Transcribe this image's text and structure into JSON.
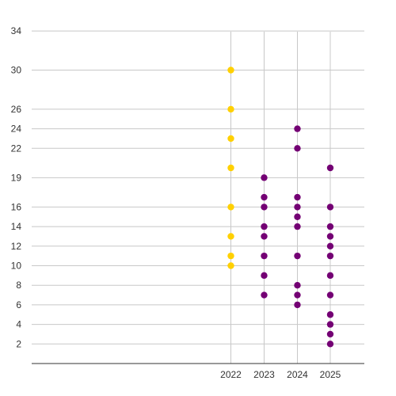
{
  "chart_data": {
    "type": "scatter",
    "title": "",
    "xlabel": "",
    "ylabel": "",
    "x_categories": [
      "2022",
      "2023",
      "2024",
      "2025"
    ],
    "y_ticks": [
      2,
      4,
      6,
      8,
      10,
      12,
      14,
      16,
      19,
      22,
      24,
      26,
      30,
      34
    ],
    "ylim": [
      0,
      34
    ],
    "grid": true,
    "legend": "none",
    "series": [
      {
        "color": "#FFD000",
        "points": [
          {
            "x": "2022",
            "y": 30
          },
          {
            "x": "2022",
            "y": 26
          },
          {
            "x": "2022",
            "y": 23
          },
          {
            "x": "2022",
            "y": 20
          },
          {
            "x": "2022",
            "y": 16
          },
          {
            "x": "2022",
            "y": 13
          },
          {
            "x": "2022",
            "y": 11
          },
          {
            "x": "2022",
            "y": 10
          }
        ]
      },
      {
        "color": "#740074",
        "points": [
          {
            "x": "2023",
            "y": 19
          },
          {
            "x": "2023",
            "y": 17
          },
          {
            "x": "2023",
            "y": 16
          },
          {
            "x": "2023",
            "y": 14
          },
          {
            "x": "2023",
            "y": 13
          },
          {
            "x": "2023",
            "y": 11
          },
          {
            "x": "2023",
            "y": 9
          },
          {
            "x": "2023",
            "y": 7
          },
          {
            "x": "2024",
            "y": 24
          },
          {
            "x": "2024",
            "y": 22
          },
          {
            "x": "2024",
            "y": 17
          },
          {
            "x": "2024",
            "y": 16
          },
          {
            "x": "2024",
            "y": 15
          },
          {
            "x": "2024",
            "y": 14
          },
          {
            "x": "2024",
            "y": 11
          },
          {
            "x": "2024",
            "y": 8
          },
          {
            "x": "2024",
            "y": 7
          },
          {
            "x": "2024",
            "y": 6
          },
          {
            "x": "2025",
            "y": 20
          },
          {
            "x": "2025",
            "y": 16
          },
          {
            "x": "2025",
            "y": 14
          },
          {
            "x": "2025",
            "y": 13
          },
          {
            "x": "2025",
            "y": 12
          },
          {
            "x": "2025",
            "y": 11
          },
          {
            "x": "2025",
            "y": 9
          },
          {
            "x": "2025",
            "y": 7
          },
          {
            "x": "2025",
            "y": 5
          },
          {
            "x": "2025",
            "y": 4
          },
          {
            "x": "2025",
            "y": 3
          },
          {
            "x": "2025",
            "y": 2
          }
        ]
      }
    ]
  }
}
